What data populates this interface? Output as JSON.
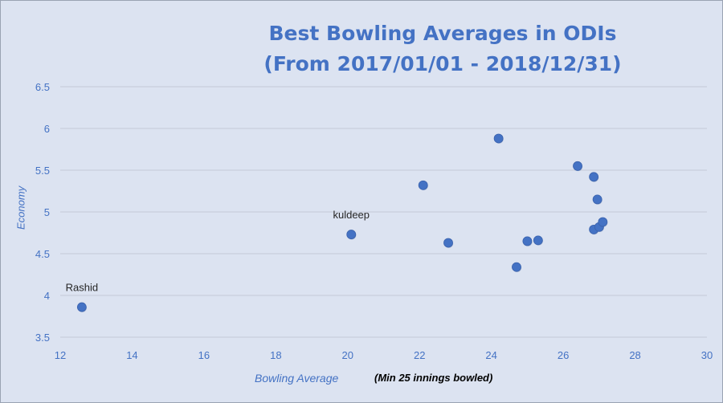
{
  "chart_data": {
    "type": "scatter",
    "title_lines": [
      "Best Bowling Averages in ODIs",
      "(From 2017/01/01 - 2018/12/31)"
    ],
    "xlabel": "Bowling Average",
    "xlabel_note": "(Min 25 innings bowled)",
    "ylabel": "Economy",
    "xlim": [
      12,
      30
    ],
    "ylim": [
      3.5,
      6.5
    ],
    "x_ticks": [
      "12",
      "14",
      "16",
      "18",
      "20",
      "22",
      "24",
      "26",
      "28",
      "30"
    ],
    "y_ticks": [
      "3.5",
      "4",
      "4.5",
      "5",
      "5.5",
      "6",
      "6.5"
    ],
    "grid": "horizontal",
    "marker_color": "#4472c4",
    "axis_text_color": "#4472c4",
    "points": [
      {
        "x": 12.6,
        "y": 3.86,
        "label": "Rashid"
      },
      {
        "x": 20.1,
        "y": 4.73,
        "label": "kuldeep"
      },
      {
        "x": 22.1,
        "y": 5.32,
        "label": ""
      },
      {
        "x": 22.8,
        "y": 4.63,
        "label": ""
      },
      {
        "x": 24.2,
        "y": 5.88,
        "label": ""
      },
      {
        "x": 24.7,
        "y": 4.34,
        "label": ""
      },
      {
        "x": 25.0,
        "y": 4.65,
        "label": ""
      },
      {
        "x": 25.3,
        "y": 4.66,
        "label": ""
      },
      {
        "x": 26.4,
        "y": 5.55,
        "label": ""
      },
      {
        "x": 26.85,
        "y": 5.42,
        "label": ""
      },
      {
        "x": 26.95,
        "y": 5.15,
        "label": ""
      },
      {
        "x": 26.85,
        "y": 4.79,
        "label": ""
      },
      {
        "x": 27.0,
        "y": 4.82,
        "label": ""
      },
      {
        "x": 27.1,
        "y": 4.88,
        "label": ""
      }
    ]
  }
}
